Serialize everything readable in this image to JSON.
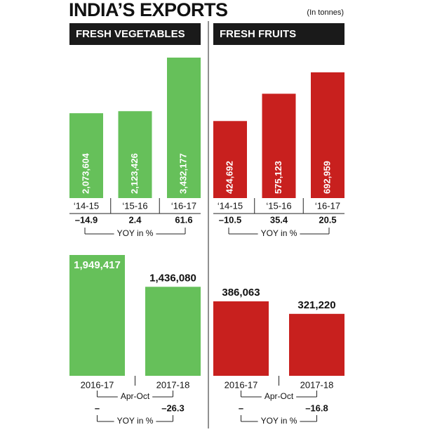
{
  "title": "INDIA’S EXPORTS",
  "unit_note": "(In tonnes)",
  "chart_data": [
    {
      "type": "bar",
      "title": "FRESH VEGETABLES",
      "color": "#66c05a",
      "categories": [
        "‘14-15",
        "‘15-16",
        "‘16-17"
      ],
      "values": [
        2073604,
        2123426,
        3432177
      ],
      "value_labels": [
        "2,073,604",
        "2,123,426",
        "3,432,177"
      ],
      "yoy": [
        -14.9,
        2.4,
        61.6
      ],
      "yoy_value_labels": [
        "–14.9",
        "2.4",
        "61.6"
      ],
      "yoy_label": "YOY in %"
    },
    {
      "type": "bar",
      "title": "FRESH FRUITS",
      "color": "#c8201e",
      "categories": [
        "‘14-15",
        "‘15-16",
        "‘16-17"
      ],
      "values": [
        424692,
        575123,
        692959
      ],
      "value_labels": [
        "424,692",
        "575,123",
        "692,959"
      ],
      "yoy": [
        -10.5,
        35.4,
        20.5
      ],
      "yoy_value_labels": [
        "–10.5",
        "35.4",
        "20.5"
      ],
      "yoy_label": "YOY in %"
    },
    {
      "type": "bar",
      "color": "#66c05a",
      "categories": [
        "2016-17",
        "2017-18"
      ],
      "group_label": "Apr-Oct",
      "values": [
        1949417,
        1436080
      ],
      "value_labels": [
        "1,949,417",
        "1,436,080"
      ],
      "yoy": [
        null,
        -26.3
      ],
      "yoy_value_labels": [
        "–",
        "–26.3"
      ],
      "yoy_label": "YOY in %"
    },
    {
      "type": "bar",
      "color": "#c8201e",
      "categories": [
        "2016-17",
        "2017-18"
      ],
      "group_label": "Apr-Oct",
      "values": [
        386063,
        321220
      ],
      "value_labels": [
        "386,063",
        "321,220"
      ],
      "yoy": [
        null,
        -16.8
      ],
      "yoy_value_labels": [
        "–",
        "–16.8"
      ],
      "yoy_label": "YOY in %"
    }
  ]
}
